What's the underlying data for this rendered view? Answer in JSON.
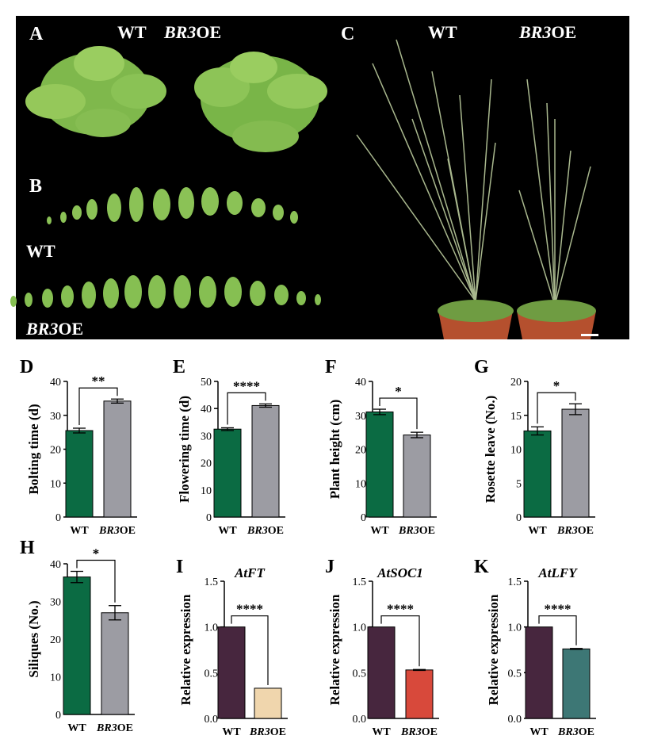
{
  "photos": {
    "panel_a": {
      "letter": "A",
      "label_wt": "WT",
      "label_oe_italic": "BR3",
      "label_oe_suffix": "OE"
    },
    "panel_b": {
      "letter": "B",
      "label_wt": "WT",
      "label_oe_italic": "BR3",
      "label_oe_suffix": "OE"
    },
    "panel_c": {
      "letter": "C",
      "label_wt": "WT",
      "label_oe_italic": "BR3",
      "label_oe_suffix": "OE"
    }
  },
  "colors": {
    "wt_green": "#0b6b43",
    "oe_gray": "#9c9ca3",
    "wt_plum": "#47263e",
    "oe_peach": "#f0d6ad",
    "oe_red": "#d8493b",
    "oe_teal": "#3d7775",
    "photo_bg": "#000000"
  },
  "chart_data": [
    {
      "panel": "D",
      "type": "bar",
      "ylabel": "Bolting time (d)",
      "title": "",
      "ylim": [
        0,
        40
      ],
      "yticks": [
        "0",
        "10",
        "20",
        "30",
        "40"
      ],
      "categories": [
        {
          "text": "WT",
          "italic": ""
        },
        {
          "text": "OE",
          "italic": "BR3"
        }
      ],
      "values": [
        25.5,
        34.2
      ],
      "errors": [
        0.7,
        0.6
      ],
      "significance": "**",
      "colors": [
        "#0b6b43",
        "#9c9ca3"
      ]
    },
    {
      "panel": "E",
      "type": "bar",
      "ylabel": "Flowering time (d)",
      "title": "",
      "ylim": [
        0,
        50
      ],
      "yticks": [
        "0",
        "10",
        "20",
        "30",
        "40",
        "50"
      ],
      "categories": [
        {
          "text": "WT",
          "italic": ""
        },
        {
          "text": "OE",
          "italic": "BR3"
        }
      ],
      "values": [
        32.4,
        41.1
      ],
      "errors": [
        0.5,
        0.6
      ],
      "significance": "****",
      "colors": [
        "#0b6b43",
        "#9c9ca3"
      ]
    },
    {
      "panel": "F",
      "type": "bar",
      "ylabel": "Plant height (cm)",
      "title": "",
      "ylim": [
        0,
        40
      ],
      "yticks": [
        "0",
        "10",
        "20",
        "30",
        "40"
      ],
      "categories": [
        {
          "text": "WT",
          "italic": ""
        },
        {
          "text": "OE",
          "italic": "BR3"
        }
      ],
      "values": [
        31.0,
        24.2
      ],
      "errors": [
        0.8,
        0.8
      ],
      "significance": "*",
      "colors": [
        "#0b6b43",
        "#9c9ca3"
      ]
    },
    {
      "panel": "G",
      "type": "bar",
      "ylabel": "Rosette leave (No.)",
      "title": "",
      "ylim": [
        0,
        20
      ],
      "yticks": [
        "0",
        "5",
        "10",
        "15",
        "20"
      ],
      "categories": [
        {
          "text": "WT",
          "italic": ""
        },
        {
          "text": "OE",
          "italic": "BR3"
        }
      ],
      "values": [
        12.7,
        15.9
      ],
      "errors": [
        0.6,
        0.8
      ],
      "significance": "*",
      "colors": [
        "#0b6b43",
        "#9c9ca3"
      ]
    },
    {
      "panel": "H",
      "type": "bar",
      "ylabel": "Siliques (No.)",
      "title": "",
      "ylim": [
        0,
        40
      ],
      "yticks": [
        "0",
        "10",
        "20",
        "30",
        "40"
      ],
      "categories": [
        {
          "text": "WT",
          "italic": ""
        },
        {
          "text": "OE",
          "italic": "BR3"
        }
      ],
      "values": [
        36.5,
        27.0
      ],
      "errors": [
        1.5,
        1.9
      ],
      "significance": "*",
      "colors": [
        "#0b6b43",
        "#9c9ca3"
      ]
    },
    {
      "panel": "I",
      "type": "bar",
      "ylabel": "Relative expression",
      "title": "AtFT",
      "ylim": [
        0,
        1.5
      ],
      "yticks": [
        "0.0",
        "0.5",
        "1.0",
        "1.5"
      ],
      "categories": [
        {
          "text": "WT",
          "italic": ""
        },
        {
          "text": "OE",
          "italic": "BR3"
        }
      ],
      "values": [
        1.0,
        0.33
      ],
      "errors": [
        0,
        0
      ],
      "significance": "****",
      "colors": [
        "#47263e",
        "#f0d6ad"
      ]
    },
    {
      "panel": "J",
      "type": "bar",
      "ylabel": "Relative expression",
      "title": "AtSOC1",
      "ylim": [
        0,
        1.5
      ],
      "yticks": [
        "0.0",
        "0.5",
        "1.0",
        "1.5"
      ],
      "categories": [
        {
          "text": "WT",
          "italic": ""
        },
        {
          "text": "OE",
          "italic": "BR3"
        }
      ],
      "values": [
        1.0,
        0.53
      ],
      "errors": [
        0,
        0.005
      ],
      "significance": "****",
      "colors": [
        "#47263e",
        "#d8493b"
      ]
    },
    {
      "panel": "K",
      "type": "bar",
      "ylabel": "Relative expression",
      "title": "AtLFY",
      "ylim": [
        0,
        1.5
      ],
      "yticks": [
        "0.0",
        "0.5",
        "1.0",
        "1.5"
      ],
      "categories": [
        {
          "text": "WT",
          "italic": ""
        },
        {
          "text": "OE",
          "italic": "BR3"
        }
      ],
      "values": [
        1.0,
        0.76
      ],
      "errors": [
        0,
        0.005
      ],
      "significance": "****",
      "colors": [
        "#47263e",
        "#3d7775"
      ]
    }
  ]
}
